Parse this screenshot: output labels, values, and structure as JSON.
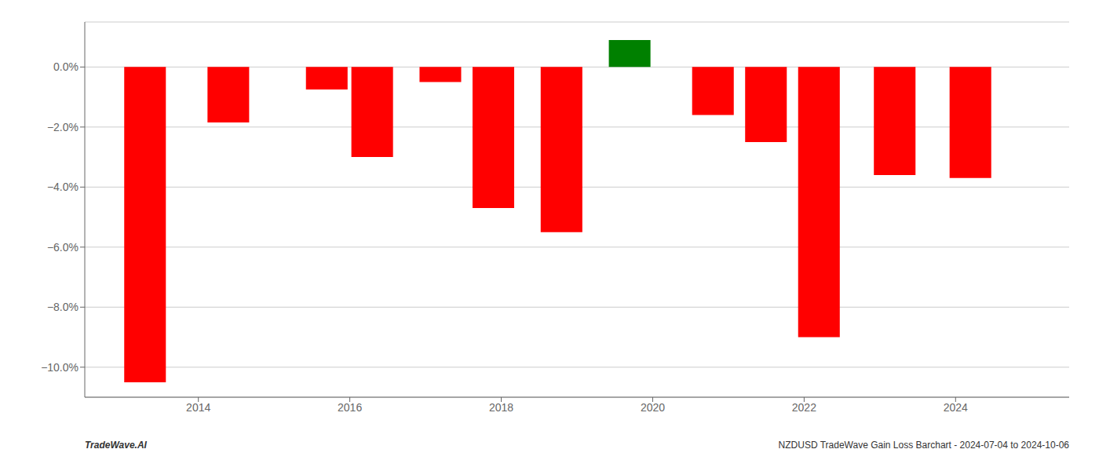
{
  "chart_data": {
    "type": "bar",
    "x": [
      2013.3,
      2014.4,
      2015.7,
      2016.3,
      2017.2,
      2017.9,
      2018.8,
      2019.7,
      2020.8,
      2021.5,
      2022.2,
      2023.2,
      2024.2
    ],
    "values": [
      -10.5,
      -1.85,
      -0.75,
      -3.0,
      -0.5,
      -4.7,
      -5.5,
      0.9,
      -1.6,
      -2.5,
      -9.0,
      -3.6,
      -3.7
    ],
    "colors": [
      "#ff0000",
      "#ff0000",
      "#ff0000",
      "#ff0000",
      "#ff0000",
      "#ff0000",
      "#ff0000",
      "#008000",
      "#ff0000",
      "#ff0000",
      "#ff0000",
      "#ff0000",
      "#ff0000"
    ],
    "xlim": [
      2012.5,
      2025.5
    ],
    "xticks": [
      2014,
      2016,
      2018,
      2020,
      2022,
      2024
    ],
    "ylim": [
      -11.0,
      1.5
    ],
    "yticks": [
      {
        "value": 0.0,
        "label": "0.0%"
      },
      {
        "value": -2.0,
        "label": "−2.0%"
      },
      {
        "value": -4.0,
        "label": "−4.0%"
      },
      {
        "value": -6.0,
        "label": "−6.0%"
      },
      {
        "value": -8.0,
        "label": "−8.0%"
      },
      {
        "value": -10.0,
        "label": "−10.0%"
      }
    ],
    "grid": true,
    "annotations": [
      "TradeWave.AI",
      "NZDUSD TradeWave Gain Loss Barchart - 2024-07-04 to 2024-10-06"
    ]
  }
}
